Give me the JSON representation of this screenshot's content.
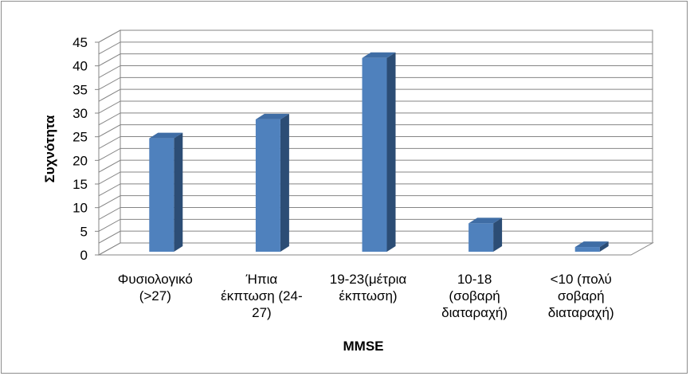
{
  "chart_data": {
    "type": "bar",
    "categories": [
      [
        "Φυσιολογικό",
        "(>27)"
      ],
      [
        "Ήπια",
        "έκπτωση (24-",
        "27)"
      ],
      [
        "19-23(μέτρια",
        "έκπτωση)"
      ],
      [
        "10-18",
        "(σοβαρή",
        "διαταραχή)"
      ],
      [
        "<10 (πολύ",
        "σοβαρή",
        "διαταραχή)"
      ]
    ],
    "values": [
      24,
      28,
      41,
      6,
      1
    ],
    "xlabel": "MMSE",
    "ylabel": "Συχνότητα",
    "ylim": [
      0,
      45
    ],
    "yticks": [
      0,
      5,
      10,
      15,
      20,
      25,
      30,
      35,
      40,
      45
    ],
    "grid": true,
    "three_d": true,
    "colors": {
      "bar_front": "#4f81bd",
      "bar_side": "#2c4d75",
      "bar_top": "#3f6da5",
      "grid": "#858585",
      "wall": "#ffffff"
    }
  }
}
